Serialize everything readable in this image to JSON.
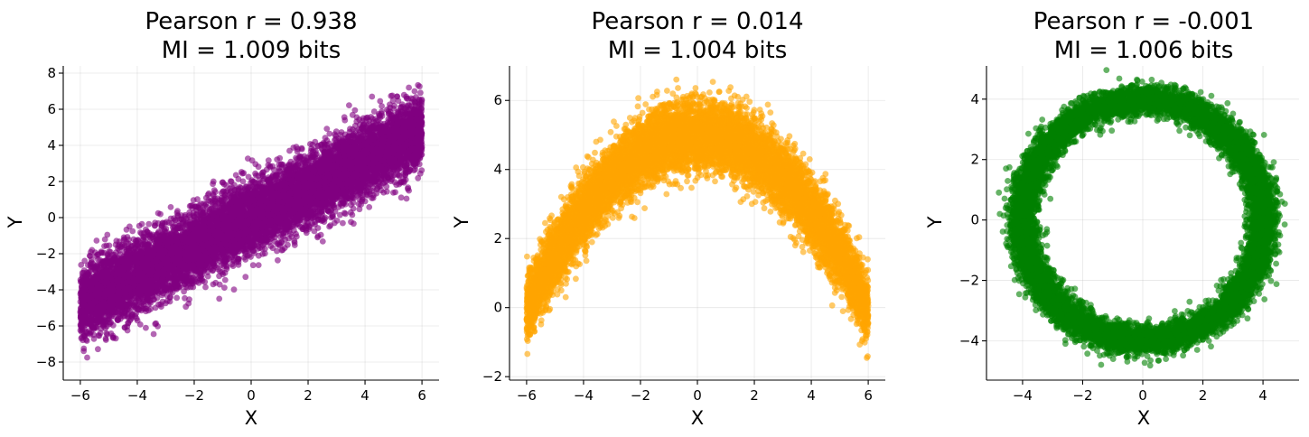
{
  "chart_data": [
    {
      "type": "scatter",
      "title_line1": "Pearson r = 0.938",
      "title_line2": "MI = 1.009 bits",
      "xlabel": "X",
      "ylabel": "Y",
      "xlim": [
        -6.6,
        6.6
      ],
      "ylim": [
        -9.0,
        8.4
      ],
      "xticks": [
        -6,
        -4,
        -2,
        0,
        2,
        4,
        6
      ],
      "yticks": [
        -8,
        -6,
        -4,
        -2,
        0,
        2,
        4,
        6,
        8
      ],
      "color": "#800080",
      "grid": true,
      "pattern": "linear",
      "x_range": [
        -6,
        6
      ],
      "relation": "y = 0.8x",
      "noise_sd": 1.0,
      "n_points": 10000
    },
    {
      "type": "scatter",
      "title_line1": "Pearson r = 0.014",
      "title_line2": "MI = 1.004 bits",
      "xlabel": "X",
      "ylabel": "Y",
      "xlim": [
        -6.6,
        6.6
      ],
      "ylim": [
        -2.1,
        7.0
      ],
      "xticks": [
        -6,
        -4,
        -2,
        0,
        2,
        4,
        6
      ],
      "yticks": [
        -2,
        0,
        2,
        4,
        6
      ],
      "color": "#ffa500",
      "grid": true,
      "pattern": "parabola",
      "x_range": [
        -6,
        6
      ],
      "relation": "y = 5 - 0.14x^2",
      "noise_sd": 0.5,
      "n_points": 10000
    },
    {
      "type": "scatter",
      "title_line1": "Pearson r = -0.001",
      "title_line2": "MI = 1.006 bits",
      "xlabel": "X",
      "ylabel": "Y",
      "xlim": [
        -5.2,
        5.2
      ],
      "ylim": [
        -5.3,
        5.1
      ],
      "xticks": [
        -4,
        -2,
        0,
        2,
        4
      ],
      "yticks": [
        -4,
        -2,
        0,
        2,
        4
      ],
      "color": "#008000",
      "grid": true,
      "pattern": "ring",
      "radius": 4.0,
      "noise_sd": 0.25,
      "n_points": 10000
    }
  ]
}
